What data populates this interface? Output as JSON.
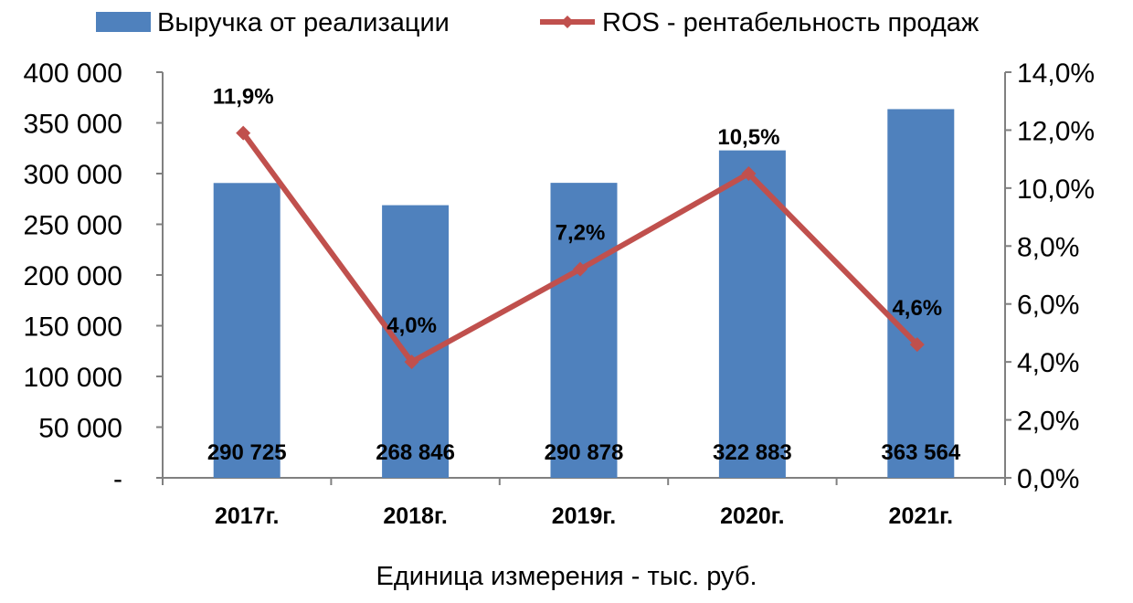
{
  "chart_data": {
    "type": "bar",
    "categories": [
      "2017г.",
      "2018г.",
      "2019г.",
      "2020г.",
      "2021г."
    ],
    "series": [
      {
        "name": "Выручка от реализации",
        "kind": "bar",
        "axis": "left",
        "color": "#4F81BD",
        "values": [
          290725,
          268846,
          290878,
          322883,
          363564
        ],
        "value_labels": [
          "290 725",
          "268 846",
          "290 878",
          "322 883",
          "363 564"
        ]
      },
      {
        "name": "ROS - рентабельность продаж",
        "kind": "line",
        "axis": "right",
        "color": "#C0504D",
        "values": [
          11.9,
          4.0,
          7.2,
          10.5,
          4.6
        ],
        "value_labels": [
          "11,9%",
          "4,0%",
          "7,2%",
          "10,5%",
          "4,6%"
        ]
      }
    ],
    "y_left": {
      "ylim": [
        0,
        400000
      ],
      "ticks": [
        0,
        50000,
        100000,
        150000,
        200000,
        250000,
        300000,
        350000,
        400000
      ],
      "tick_labels": [
        "-",
        "50 000",
        "100 000",
        "150 000",
        "200 000",
        "250 000",
        "300 000",
        "350 000",
        "400 000"
      ]
    },
    "y_right": {
      "ylim": [
        0,
        14
      ],
      "ticks": [
        0,
        2,
        4,
        6,
        8,
        10,
        12,
        14
      ],
      "tick_labels": [
        "0,0%",
        "2,0%",
        "4,0%",
        "6,0%",
        "8,0%",
        "10,0%",
        "12,0%",
        "14,0%"
      ]
    },
    "xlabel": "Единица измерения - тыс. руб.",
    "grid": false,
    "legend": "top"
  }
}
